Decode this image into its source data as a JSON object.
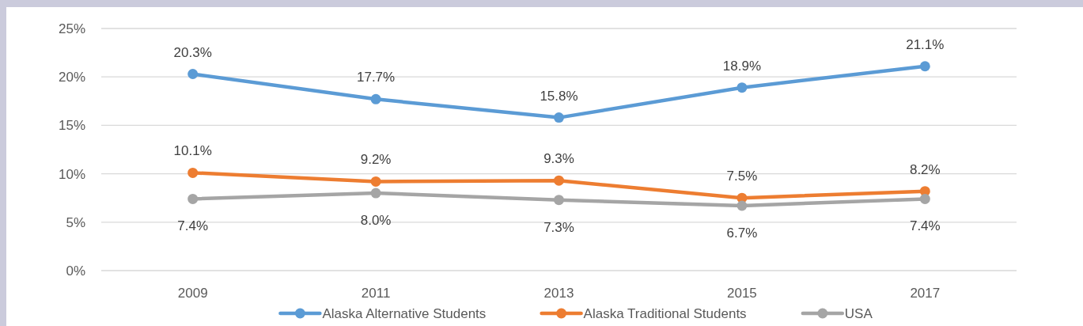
{
  "chart_data": {
    "type": "line",
    "categories": [
      "2009",
      "2011",
      "2013",
      "2015",
      "2017"
    ],
    "series": [
      {
        "name": "Alaska Alternative Students",
        "color": "#5b9bd5",
        "values": [
          20.3,
          17.7,
          15.8,
          18.9,
          21.1
        ],
        "value_labels": [
          "20.3%",
          "17.7%",
          "15.8%",
          "18.9%",
          "21.1%"
        ]
      },
      {
        "name": "Alaska Traditional Students",
        "color": "#ed7d31",
        "values": [
          10.1,
          9.2,
          9.3,
          7.5,
          8.2
        ],
        "value_labels": [
          "10.1%",
          "9.2%",
          "9.3%",
          "7.5%",
          "8.2%"
        ]
      },
      {
        "name": "USA",
        "color": "#a5a5a5",
        "values": [
          7.4,
          8.0,
          7.3,
          6.7,
          7.4
        ],
        "value_labels": [
          "7.4%",
          "8.0%",
          "7.3%",
          "6.7%",
          "7.4%"
        ]
      }
    ],
    "ylim": [
      0,
      25
    ],
    "yticks": [
      {
        "value": 0,
        "label": "0%"
      },
      {
        "value": 5,
        "label": "5%"
      },
      {
        "value": 10,
        "label": "10%"
      },
      {
        "value": 15,
        "label": "15%"
      },
      {
        "value": 20,
        "label": "20%"
      },
      {
        "value": 25,
        "label": "25%"
      }
    ],
    "grid": "y",
    "legend": "bottom",
    "marker": "circle",
    "line_style": "solid"
  }
}
